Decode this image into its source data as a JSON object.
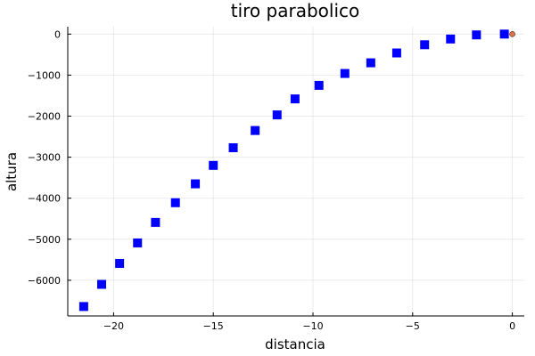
{
  "chart_data": {
    "type": "scatter",
    "title": "tiro parabolico",
    "xlabel": "distancia",
    "ylabel": "altura",
    "xlim": [
      -22.3,
      0.6
    ],
    "ylim": [
      -6870,
      180
    ],
    "x_ticks": [
      -20,
      -15,
      -10,
      -5,
      0
    ],
    "x_tick_labels": [
      "−20",
      "−15",
      "−10",
      "−5",
      "0"
    ],
    "y_ticks": [
      0,
      -1000,
      -2000,
      -3000,
      -4000,
      -5000,
      -6000
    ],
    "y_tick_labels": [
      "0",
      "−1000",
      "−2000",
      "−3000",
      "−4000",
      "−5000",
      "−6000"
    ],
    "grid": true,
    "series": [
      {
        "color": "#0000ff",
        "marker": "square",
        "x": [
          -0.4,
          -1.8,
          -3.1,
          -4.4,
          -5.8,
          -7.1,
          -8.4,
          -9.7,
          -10.9,
          -11.8,
          -12.9,
          -14.0,
          -15.0,
          -15.9,
          -16.9,
          -17.9,
          -18.8,
          -19.7,
          -20.6,
          -21.5
        ],
        "y": [
          0,
          -20,
          -120,
          -260,
          -460,
          -700,
          -960,
          -1250,
          -1580,
          -1970,
          -2350,
          -2770,
          -3200,
          -3650,
          -4110,
          -4590,
          -5090,
          -5590,
          -6100,
          -6640
        ]
      },
      {
        "color": "#e26f46",
        "marker": "circle",
        "x": [
          0
        ],
        "y": [
          0
        ]
      }
    ]
  }
}
